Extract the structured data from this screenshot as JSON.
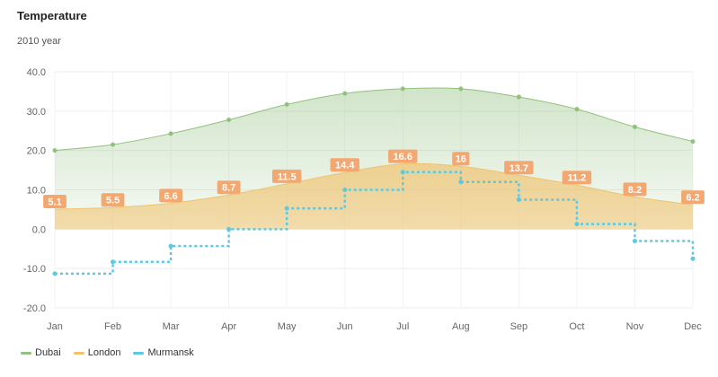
{
  "chart_data": {
    "type": "line",
    "title": "Temperature",
    "subtitle": "2010 year",
    "categories": [
      "Jan",
      "Feb",
      "Mar",
      "Apr",
      "May",
      "Jun",
      "Jul",
      "Aug",
      "Sep",
      "Oct",
      "Nov",
      "Dec"
    ],
    "ylim": [
      -20,
      40
    ],
    "yticks": [
      "40.0",
      "30.0",
      "20.0",
      "10.0",
      "0.0",
      "-10.0",
      "-20.0"
    ],
    "grid": true,
    "legend_position": "bottom-left",
    "series": [
      {
        "name": "Dubai",
        "style": "smooth-area",
        "color": "#91c07f",
        "values": [
          20.0,
          21.5,
          24.3,
          27.8,
          31.7,
          34.5,
          35.7,
          35.7,
          33.6,
          30.5,
          26.0,
          22.3
        ]
      },
      {
        "name": "London",
        "style": "smooth-area-labeled",
        "color": "#f0c36f",
        "label_color": "#f4a871",
        "values": [
          5.1,
          5.5,
          6.6,
          8.7,
          11.5,
          14.4,
          16.6,
          16.0,
          13.7,
          11.2,
          8.2,
          6.2
        ]
      },
      {
        "name": "Murmansk",
        "style": "step-dashed",
        "color": "#5bc9e1",
        "values": [
          -11.3,
          -8.3,
          -4.3,
          0.0,
          5.3,
          10.0,
          14.5,
          12.0,
          7.5,
          1.3,
          -3.0,
          -7.5
        ]
      }
    ]
  }
}
